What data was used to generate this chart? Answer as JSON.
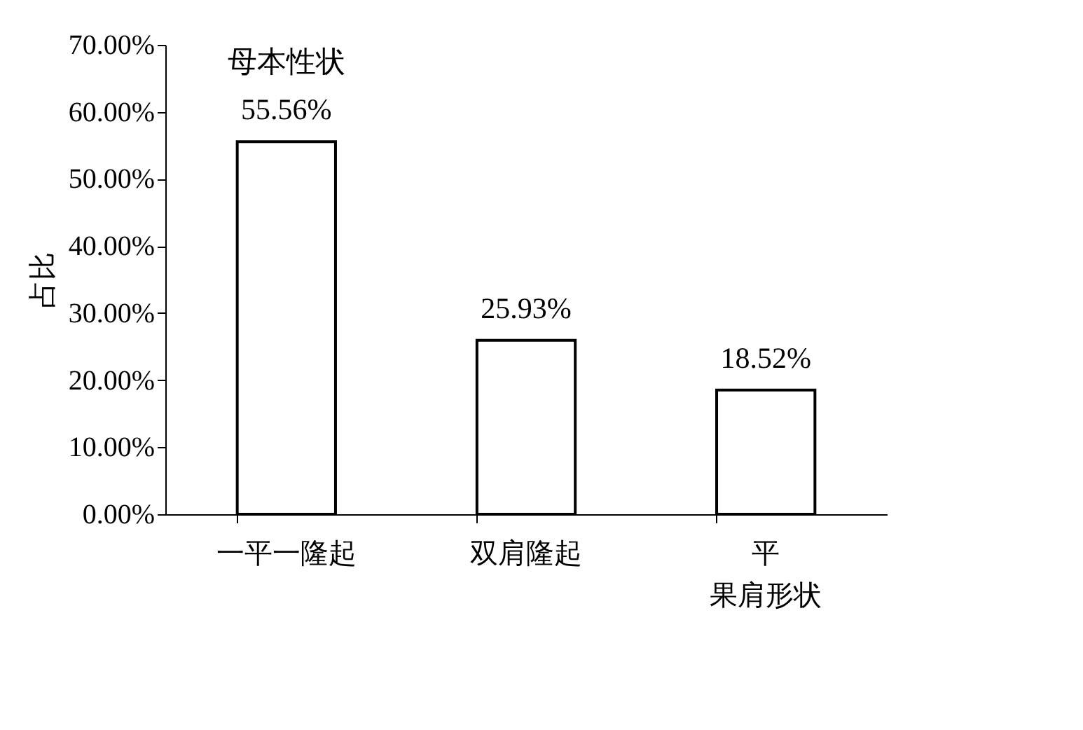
{
  "chart_data": {
    "type": "bar",
    "categories": [
      "一平一隆起",
      "双肩隆起",
      "平果肩形状"
    ],
    "values": [
      55.56,
      25.93,
      18.52
    ],
    "value_labels": [
      "55.56%",
      "25.93%",
      "18.52%"
    ],
    "color": "#ffffff",
    "ylabel": "占比",
    "ylim": [
      0,
      70
    ],
    "yticks": [
      {
        "value": 0,
        "label": "0.00%"
      },
      {
        "value": 10,
        "label": "10.00%"
      },
      {
        "value": 20,
        "label": "20.00%"
      },
      {
        "value": 30,
        "label": "30.00%"
      },
      {
        "value": 40,
        "label": "40.00%"
      },
      {
        "value": 50,
        "label": "50.00%"
      },
      {
        "value": 60,
        "label": "60.00%"
      },
      {
        "value": 70,
        "label": "70.00%"
      }
    ],
    "annotations": [
      {
        "text": "母本性状",
        "x": "一平一隆起",
        "y": 55.56
      }
    ],
    "grid": false
  }
}
